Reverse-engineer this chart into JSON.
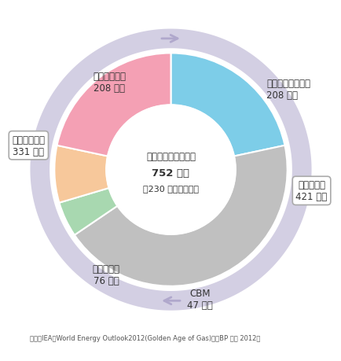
{
  "segments": [
    {
      "label": "従来の確認埋蔵量\n208 兆㎥",
      "value": 208,
      "color": "#7DCDE8"
    },
    {
      "label": "在来型ガス\n421 兆㎥",
      "value": 421,
      "color": "#C0C0C0"
    },
    {
      "label": "CBM\n47 兆㎥",
      "value": 47,
      "color": "#A8D8B0"
    },
    {
      "label": "タイトガス\n76 兆㎥",
      "value": 76,
      "color": "#F7C89B"
    },
    {
      "label": "シェールガス\n208 兆㎥",
      "value": 208,
      "color": "#F4A0B4"
    }
  ],
  "center_title": "回収可能な埋蔵量計",
  "center_line2": "752 兆㎥",
  "center_line3": "（230 年分に相当）",
  "outer_ring_color": "#B0A8CC",
  "source_text": "出典）IEA『World Energy Outlook2012(Golden Age of Gas)』『BP 統計 2012』",
  "unconventional_label": "非在来型ガス\n331 兆㎥",
  "background_color": "#FFFFFF",
  "start_angle": 90,
  "outer_r": 0.72,
  "inner_r": 0.4,
  "ring_inner_r": 0.75,
  "ring_outer_r": 0.87
}
